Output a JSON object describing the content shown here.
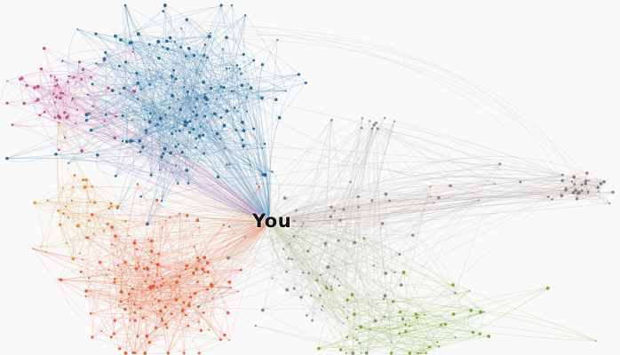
{
  "graph": {
    "ego_label": "You",
    "background": "#f9f9f9",
    "layout": "force-directed",
    "clusters": [
      {
        "id": "blue",
        "color": "#1f5f8b",
        "edge_color": "#3a7cab"
      },
      {
        "id": "magenta",
        "color": "#b14a87",
        "edge_color": "#c76ba0"
      },
      {
        "id": "orange",
        "color": "#e0562d",
        "edge_color": "#e27a52"
      },
      {
        "id": "amber",
        "color": "#d68a2e",
        "edge_color": "#dba05a"
      },
      {
        "id": "green",
        "color": "#6f9e2c",
        "edge_color": "#8fb34e"
      },
      {
        "id": "gray",
        "color": "#8a7f78",
        "edge_color": "#b3aaa4"
      },
      {
        "id": "right-satellite",
        "color": "#7d736d",
        "edge_color": "#a59c96"
      }
    ]
  }
}
